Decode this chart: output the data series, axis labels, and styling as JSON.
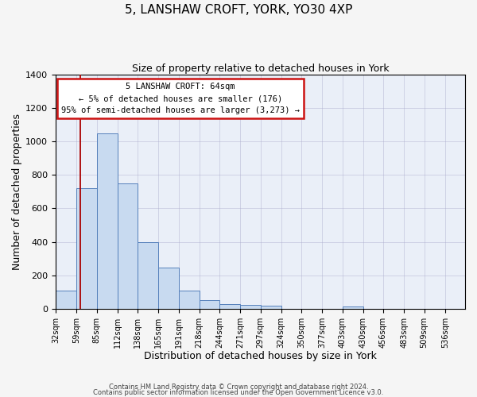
{
  "title": "5, LANSHAW CROFT, YORK, YO30 4XP",
  "subtitle": "Size of property relative to detached houses in York",
  "xlabel": "Distribution of detached houses by size in York",
  "ylabel": "Number of detached properties",
  "bin_edges": [
    32,
    59,
    85,
    112,
    138,
    165,
    191,
    218,
    244,
    271,
    297,
    324,
    350,
    377,
    403,
    430,
    456,
    483,
    509,
    536,
    562
  ],
  "values": [
    110,
    720,
    1050,
    750,
    400,
    245,
    110,
    50,
    25,
    22,
    20,
    0,
    0,
    0,
    12,
    0,
    0,
    0,
    0,
    0
  ],
  "bar_face_color": "#c8daf0",
  "bar_edge_color": "#5580bb",
  "property_sqm": 64,
  "property_line_color": "#aa0000",
  "ylim": [
    0,
    1400
  ],
  "yticks": [
    0,
    200,
    400,
    600,
    800,
    1000,
    1200,
    1400
  ],
  "annotation_title": "5 LANSHAW CROFT: 64sqm",
  "annotation_line1": "← 5% of detached houses are smaller (176)",
  "annotation_line2": "95% of semi-detached houses are larger (3,273) →",
  "annotation_box_fc": "#ffffff",
  "annotation_box_ec": "#cc1111",
  "grid_color": "#aaaacc",
  "plot_bg": "#eaeff8",
  "fig_bg": "#f5f5f5",
  "footnote1": "Contains HM Land Registry data © Crown copyright and database right 2024.",
  "footnote2": "Contains public sector information licensed under the Open Government Licence v3.0."
}
